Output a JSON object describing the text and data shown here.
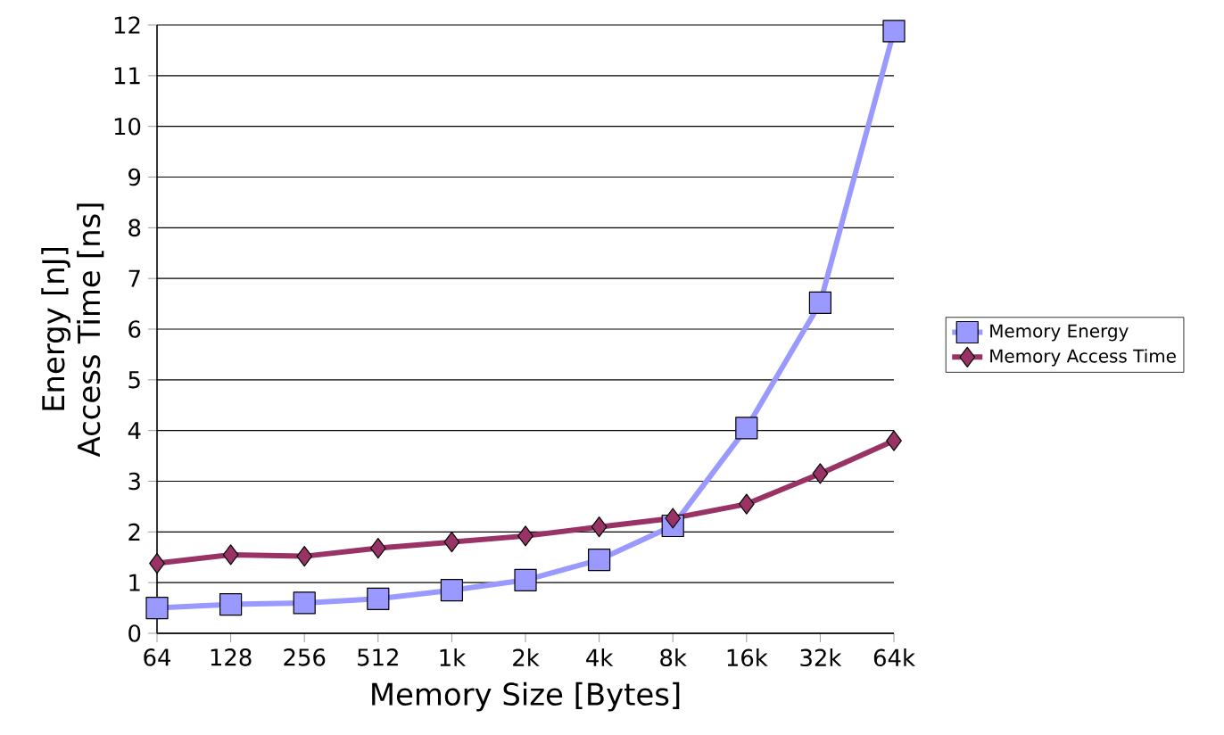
{
  "chart_data": {
    "type": "line",
    "xlabel": "Memory Size [Bytes]",
    "ylabel": "Energy [nJ] Access Time [ns]",
    "categories": [
      "64",
      "128",
      "256",
      "512",
      "1k",
      "2k",
      "4k",
      "8k",
      "16k",
      "32k",
      "64k"
    ],
    "series": [
      {
        "name": "Memory Energy",
        "color": "#9999ff",
        "marker": "square",
        "values": [
          0.5,
          0.57,
          0.6,
          0.68,
          0.85,
          1.05,
          1.45,
          2.12,
          4.05,
          6.52,
          11.88
        ]
      },
      {
        "name": "Memory Access Time",
        "color": "#993366",
        "marker": "diamond",
        "values": [
          1.38,
          1.55,
          1.52,
          1.68,
          1.8,
          1.92,
          2.1,
          2.27,
          2.55,
          3.15,
          3.8
        ]
      }
    ],
    "ylim": [
      0,
      12
    ],
    "yticks": [
      0,
      1,
      2,
      3,
      4,
      5,
      6,
      7,
      8,
      9,
      10,
      11,
      12
    ],
    "grid": "y",
    "legend": "right",
    "line_style": "solid"
  }
}
